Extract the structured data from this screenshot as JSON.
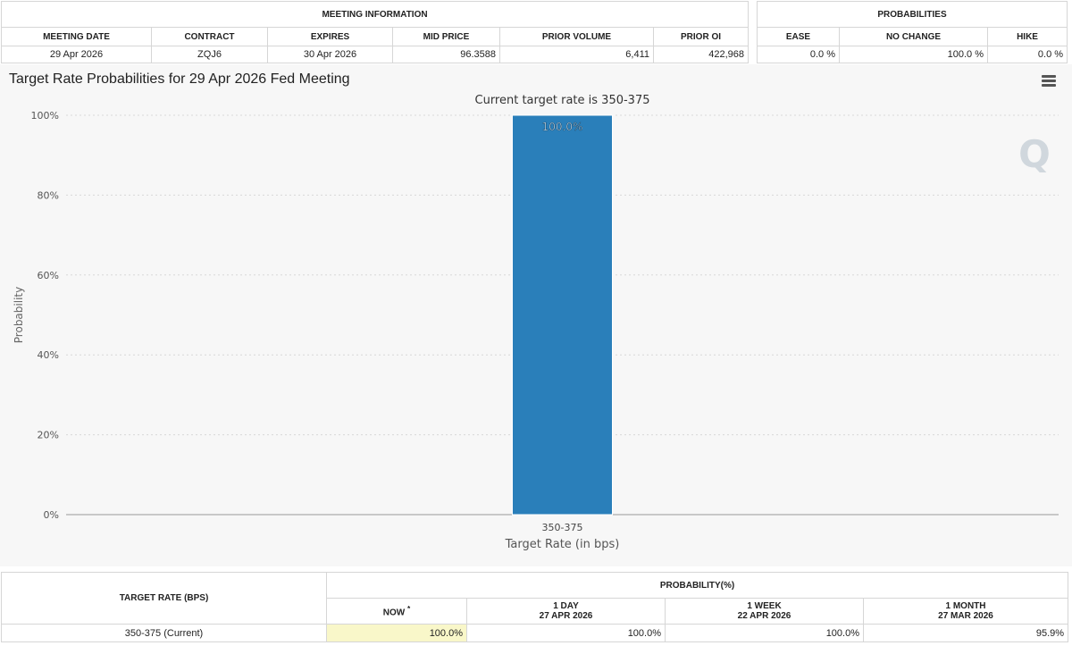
{
  "meeting_info": {
    "title": "MEETING INFORMATION",
    "headers": [
      "MEETING DATE",
      "CONTRACT",
      "EXPIRES",
      "MID PRICE",
      "PRIOR VOLUME",
      "PRIOR OI"
    ],
    "row": [
      "29 Apr 2026",
      "ZQJ6",
      "30 Apr 2026",
      "96.3588",
      "6,411",
      "422,968"
    ]
  },
  "probabilities": {
    "title": "PROBABILITIES",
    "headers": [
      "EASE",
      "NO CHANGE",
      "HIKE"
    ],
    "row": [
      "0.0 %",
      "100.0 %",
      "0.0 %"
    ]
  },
  "chart_data": {
    "type": "bar",
    "title": "Target Rate Probabilities for 29 Apr 2026 Fed Meeting",
    "subtitle": "Current target rate is 350-375",
    "xlabel": "Target Rate (in bps)",
    "ylabel": "Probability",
    "categories": [
      "350-375"
    ],
    "values": [
      100.0
    ],
    "data_labels": [
      "100.0%"
    ],
    "ylim": [
      0,
      100
    ],
    "yticks": [
      "0%",
      "20%",
      "40%",
      "60%",
      "80%",
      "100%"
    ],
    "ytick_values": [
      0,
      20,
      40,
      60,
      80,
      100
    ],
    "grid": true,
    "bar_color": "#2a7fba",
    "watermark": "Q"
  },
  "rates_table": {
    "col_header": "TARGET RATE (BPS)",
    "prob_header": "PROBABILITY(%)",
    "now_label": "NOW",
    "now_marker": "*",
    "periods": [
      {
        "label": "1 DAY",
        "date": "27 APR 2026"
      },
      {
        "label": "1 WEEK",
        "date": "22 APR 2026"
      },
      {
        "label": "1 MONTH",
        "date": "27 MAR 2026"
      }
    ],
    "rows": [
      {
        "rate": "350-375 (Current)",
        "now": "100.0%",
        "day": "100.0%",
        "week": "100.0%",
        "month": "95.9%"
      }
    ]
  }
}
